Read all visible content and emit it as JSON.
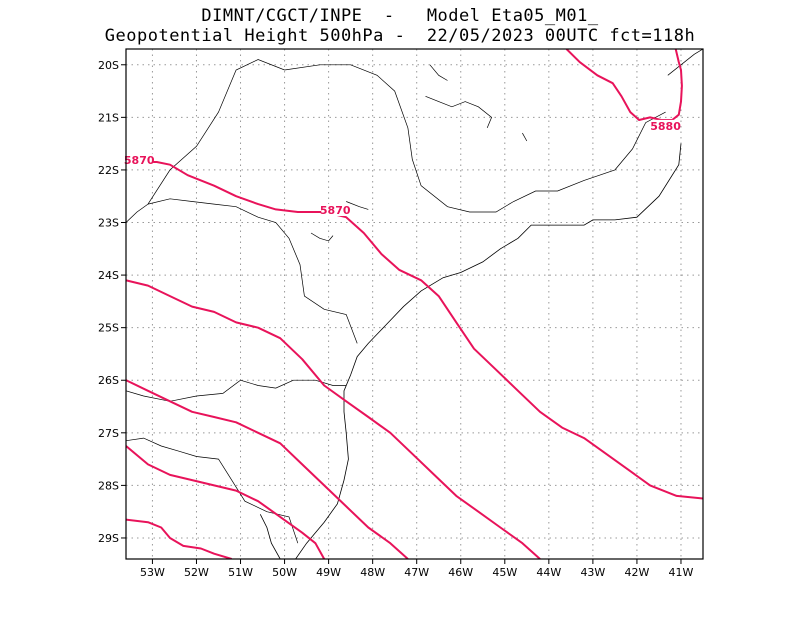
{
  "title": {
    "line1": "DIMNT/CGCT/INPE  -   Model Eta05_M01_",
    "line2": "Geopotential Height 500hPa -  22/05/2023 00UTC fct=118h"
  },
  "colors": {
    "contour": "#e8135a",
    "coastline": "#000000",
    "grid": "#999999",
    "frame": "#000000"
  },
  "map": {
    "lon_range": [
      -53.6,
      -40.5
    ],
    "lat_range": [
      -29.4,
      -19.7
    ],
    "lat_ticks": [
      {
        "value": -20,
        "label": "20S"
      },
      {
        "value": -21,
        "label": "21S"
      },
      {
        "value": -22,
        "label": "22S"
      },
      {
        "value": -23,
        "label": "23S"
      },
      {
        "value": -24,
        "label": "24S"
      },
      {
        "value": -25,
        "label": "25S"
      },
      {
        "value": -26,
        "label": "26S"
      },
      {
        "value": -27,
        "label": "27S"
      },
      {
        "value": -28,
        "label": "28S"
      },
      {
        "value": -29,
        "label": "29S"
      }
    ],
    "lon_ticks": [
      {
        "value": -53,
        "label": "53W"
      },
      {
        "value": -52,
        "label": "52W"
      },
      {
        "value": -51,
        "label": "51W"
      },
      {
        "value": -50,
        "label": "50W"
      },
      {
        "value": -49,
        "label": "49W"
      },
      {
        "value": -48,
        "label": "48W"
      },
      {
        "value": -47,
        "label": "47W"
      },
      {
        "value": -46,
        "label": "46W"
      },
      {
        "value": -45,
        "label": "45W"
      },
      {
        "value": -44,
        "label": "44W"
      },
      {
        "value": -43,
        "label": "43W"
      },
      {
        "value": -42,
        "label": "42W"
      },
      {
        "value": -41,
        "label": "41W"
      }
    ],
    "contour_labels": [
      {
        "text": "5870",
        "lon": -53.3,
        "lat": -21.85
      },
      {
        "text": "5870",
        "lon": -48.85,
        "lat": -22.8
      },
      {
        "text": "5880",
        "lon": -41.35,
        "lat": -21.2
      }
    ],
    "contours": [
      {
        "name": "contour-5870",
        "points": [
          [
            -53.6,
            -21.9
          ],
          [
            -53.45,
            -21.8
          ],
          [
            -53.2,
            -21.85
          ],
          [
            -52.9,
            -21.85
          ],
          [
            -52.6,
            -21.9
          ],
          [
            -52.2,
            -22.1
          ],
          [
            -51.6,
            -22.3
          ],
          [
            -51.1,
            -22.5
          ],
          [
            -50.6,
            -22.65
          ],
          [
            -50.2,
            -22.75
          ],
          [
            -49.7,
            -22.8
          ],
          [
            -49.1,
            -22.8
          ],
          [
            -48.6,
            -22.9
          ],
          [
            -48.2,
            -23.2
          ],
          [
            -47.8,
            -23.6
          ],
          [
            -47.4,
            -23.9
          ],
          [
            -46.9,
            -24.1
          ],
          [
            -46.5,
            -24.4
          ],
          [
            -46.1,
            -24.9
          ],
          [
            -45.7,
            -25.4
          ],
          [
            -45.2,
            -25.8
          ],
          [
            -44.7,
            -26.2
          ],
          [
            -44.2,
            -26.6
          ],
          [
            -43.7,
            -26.9
          ],
          [
            -43.2,
            -27.1
          ],
          [
            -42.7,
            -27.4
          ],
          [
            -42.2,
            -27.7
          ],
          [
            -41.7,
            -28.0
          ],
          [
            -41.1,
            -28.2
          ],
          [
            -40.5,
            -28.25
          ]
        ]
      },
      {
        "name": "contour-5880",
        "points": [
          [
            -43.6,
            -19.7
          ],
          [
            -43.3,
            -19.95
          ],
          [
            -42.9,
            -20.2
          ],
          [
            -42.55,
            -20.35
          ],
          [
            -42.35,
            -20.6
          ],
          [
            -42.15,
            -20.9
          ],
          [
            -41.95,
            -21.05
          ],
          [
            -41.7,
            -21.0
          ],
          [
            -41.45,
            -21.05
          ],
          [
            -41.2,
            -21.05
          ],
          [
            -41.05,
            -20.95
          ],
          [
            -41.0,
            -20.7
          ],
          [
            -40.98,
            -20.4
          ],
          [
            -41.0,
            -20.1
          ],
          [
            -41.05,
            -19.95
          ],
          [
            -41.12,
            -19.7
          ]
        ]
      },
      {
        "name": "contour-5860",
        "points": [
          [
            -53.6,
            -24.1
          ],
          [
            -53.1,
            -24.2
          ],
          [
            -52.6,
            -24.4
          ],
          [
            -52.1,
            -24.6
          ],
          [
            -51.6,
            -24.7
          ],
          [
            -51.1,
            -24.9
          ],
          [
            -50.6,
            -25.0
          ],
          [
            -50.1,
            -25.2
          ],
          [
            -49.6,
            -25.6
          ],
          [
            -49.1,
            -26.1
          ],
          [
            -48.6,
            -26.4
          ],
          [
            -48.1,
            -26.7
          ],
          [
            -47.6,
            -27.0
          ],
          [
            -47.1,
            -27.4
          ],
          [
            -46.6,
            -27.8
          ],
          [
            -46.1,
            -28.2
          ],
          [
            -45.6,
            -28.5
          ],
          [
            -45.1,
            -28.8
          ],
          [
            -44.6,
            -29.1
          ],
          [
            -44.2,
            -29.4
          ]
        ]
      },
      {
        "name": "contour-5850",
        "points": [
          [
            -53.6,
            -26.0
          ],
          [
            -53.1,
            -26.2
          ],
          [
            -52.6,
            -26.4
          ],
          [
            -52.1,
            -26.6
          ],
          [
            -51.6,
            -26.7
          ],
          [
            -51.1,
            -26.8
          ],
          [
            -50.6,
            -27.0
          ],
          [
            -50.1,
            -27.2
          ],
          [
            -49.6,
            -27.6
          ],
          [
            -49.1,
            -28.0
          ],
          [
            -48.6,
            -28.4
          ],
          [
            -48.1,
            -28.8
          ],
          [
            -47.6,
            -29.1
          ],
          [
            -47.2,
            -29.4
          ]
        ]
      },
      {
        "name": "contour-5840",
        "points": [
          [
            -53.6,
            -27.25
          ],
          [
            -53.1,
            -27.6
          ],
          [
            -52.6,
            -27.8
          ],
          [
            -52.1,
            -27.9
          ],
          [
            -51.6,
            -28.0
          ],
          [
            -51.1,
            -28.1
          ],
          [
            -50.6,
            -28.3
          ],
          [
            -50.1,
            -28.6
          ],
          [
            -49.6,
            -28.9
          ],
          [
            -49.3,
            -29.1
          ],
          [
            -49.1,
            -29.4
          ]
        ]
      },
      {
        "name": "contour-5830",
        "points": [
          [
            -53.6,
            -28.65
          ],
          [
            -53.1,
            -28.7
          ],
          [
            -52.8,
            -28.8
          ],
          [
            -52.6,
            -29.0
          ],
          [
            -52.3,
            -29.15
          ],
          [
            -51.9,
            -29.2
          ],
          [
            -51.6,
            -29.3
          ],
          [
            -51.2,
            -29.4
          ]
        ]
      }
    ],
    "coastlines": [
      {
        "name": "coastline-atlantic",
        "points": [
          [
            -41.0,
            -21.5
          ],
          [
            -41.05,
            -21.9
          ],
          [
            -41.5,
            -22.5
          ],
          [
            -42.0,
            -22.9
          ],
          [
            -42.5,
            -22.95
          ],
          [
            -43.0,
            -22.95
          ],
          [
            -43.2,
            -23.05
          ],
          [
            -43.6,
            -23.05
          ],
          [
            -44.0,
            -23.05
          ],
          [
            -44.4,
            -23.05
          ],
          [
            -44.7,
            -23.3
          ],
          [
            -45.1,
            -23.5
          ],
          [
            -45.5,
            -23.75
          ],
          [
            -46.0,
            -23.95
          ],
          [
            -46.4,
            -24.05
          ],
          [
            -46.9,
            -24.3
          ],
          [
            -47.3,
            -24.6
          ],
          [
            -47.7,
            -24.95
          ],
          [
            -48.1,
            -25.3
          ],
          [
            -48.35,
            -25.55
          ],
          [
            -48.5,
            -25.9
          ],
          [
            -48.65,
            -26.2
          ],
          [
            -48.65,
            -26.6
          ],
          [
            -48.6,
            -27.0
          ],
          [
            -48.55,
            -27.5
          ],
          [
            -48.65,
            -27.9
          ],
          [
            -48.8,
            -28.35
          ],
          [
            -49.1,
            -28.7
          ],
          [
            -49.5,
            -29.1
          ],
          [
            -49.75,
            -29.4
          ]
        ]
      },
      {
        "name": "coastline-lagoon",
        "points": [
          [
            -50.1,
            -29.4
          ],
          [
            -50.3,
            -29.1
          ],
          [
            -50.4,
            -28.8
          ],
          [
            -50.55,
            -28.55
          ]
        ]
      }
    ],
    "borders": [
      {
        "name": "border-sp-pr",
        "points": [
          [
            -53.1,
            -22.65
          ],
          [
            -52.6,
            -22.55
          ],
          [
            -52.1,
            -22.6
          ],
          [
            -51.6,
            -22.65
          ],
          [
            -51.1,
            -22.7
          ],
          [
            -50.6,
            -22.9
          ],
          [
            -50.2,
            -23.0
          ],
          [
            -49.9,
            -23.3
          ],
          [
            -49.65,
            -23.8
          ],
          [
            -49.55,
            -24.4
          ],
          [
            -49.1,
            -24.65
          ],
          [
            -48.6,
            -24.75
          ],
          [
            -48.35,
            -25.3
          ]
        ]
      },
      {
        "name": "border-pr-sc",
        "points": [
          [
            -53.6,
            -26.2
          ],
          [
            -53.2,
            -26.3
          ],
          [
            -52.6,
            -26.4
          ],
          [
            -52.0,
            -26.3
          ],
          [
            -51.4,
            -26.25
          ],
          [
            -51.0,
            -26.0
          ],
          [
            -50.6,
            -26.1
          ],
          [
            -50.2,
            -26.15
          ],
          [
            -49.8,
            -26.0
          ],
          [
            -49.3,
            -26.0
          ],
          [
            -48.9,
            -26.1
          ],
          [
            -48.6,
            -26.1
          ]
        ]
      },
      {
        "name": "border-sc-rs",
        "points": [
          [
            -53.6,
            -27.15
          ],
          [
            -53.2,
            -27.1
          ],
          [
            -52.8,
            -27.25
          ],
          [
            -52.4,
            -27.35
          ],
          [
            -52.0,
            -27.45
          ],
          [
            -51.5,
            -27.5
          ],
          [
            -51.2,
            -27.9
          ],
          [
            -50.9,
            -28.3
          ],
          [
            -50.4,
            -28.5
          ],
          [
            -49.9,
            -28.6
          ],
          [
            -49.7,
            -29.1
          ]
        ]
      },
      {
        "name": "border-mg-sp",
        "points": [
          [
            -53.1,
            -22.65
          ],
          [
            -52.6,
            -22.0
          ],
          [
            -52.0,
            -21.55
          ],
          [
            -51.5,
            -20.9
          ],
          [
            -51.1,
            -20.1
          ],
          [
            -50.6,
            -19.9
          ],
          [
            -50.0,
            -20.1
          ],
          [
            -49.2,
            -20.0
          ],
          [
            -48.5,
            -20.0
          ],
          [
            -47.9,
            -20.2
          ],
          [
            -47.5,
            -20.5
          ],
          [
            -47.2,
            -21.2
          ],
          [
            -47.1,
            -21.8
          ],
          [
            -46.9,
            -22.3
          ],
          [
            -46.3,
            -22.7
          ],
          [
            -45.8,
            -22.8
          ],
          [
            -45.2,
            -22.8
          ],
          [
            -44.8,
            -22.6
          ],
          [
            -44.3,
            -22.4
          ],
          [
            -43.8,
            -22.4
          ],
          [
            -43.2,
            -22.2
          ],
          [
            -42.5,
            -22.0
          ],
          [
            -42.1,
            -21.6
          ],
          [
            -41.8,
            -21.1
          ],
          [
            -41.35,
            -20.9
          ]
        ]
      },
      {
        "name": "border-ms-sp",
        "points": [
          [
            -53.6,
            -23.0
          ],
          [
            -53.35,
            -22.8
          ],
          [
            -53.1,
            -22.65
          ]
        ]
      },
      {
        "name": "border-north",
        "points": [
          [
            -41.3,
            -20.2
          ],
          [
            -41.0,
            -20.0
          ],
          [
            -40.7,
            -19.8
          ],
          [
            -40.5,
            -19.7
          ]
        ]
      }
    ],
    "rivers": [
      {
        "name": "reservoir-1",
        "points": [
          [
            -46.8,
            -20.6
          ],
          [
            -46.5,
            -20.7
          ],
          [
            -46.2,
            -20.8
          ],
          [
            -45.9,
            -20.7
          ],
          [
            -45.6,
            -20.8
          ],
          [
            -45.3,
            -21.0
          ],
          [
            -45.4,
            -21.2
          ]
        ]
      },
      {
        "name": "reservoir-2",
        "points": [
          [
            -49.4,
            -23.2
          ],
          [
            -49.2,
            -23.3
          ],
          [
            -49.0,
            -23.35
          ],
          [
            -48.9,
            -23.25
          ]
        ]
      },
      {
        "name": "reservoir-3",
        "points": [
          [
            -48.6,
            -22.6
          ],
          [
            -48.3,
            -22.7
          ],
          [
            -48.1,
            -22.75
          ]
        ]
      },
      {
        "name": "reservoir-4",
        "points": [
          [
            -46.7,
            -20.0
          ],
          [
            -46.5,
            -20.2
          ],
          [
            -46.3,
            -20.3
          ]
        ]
      },
      {
        "name": "reservoir-5",
        "points": [
          [
            -44.6,
            -21.3
          ],
          [
            -44.5,
            -21.45
          ]
        ]
      }
    ]
  }
}
